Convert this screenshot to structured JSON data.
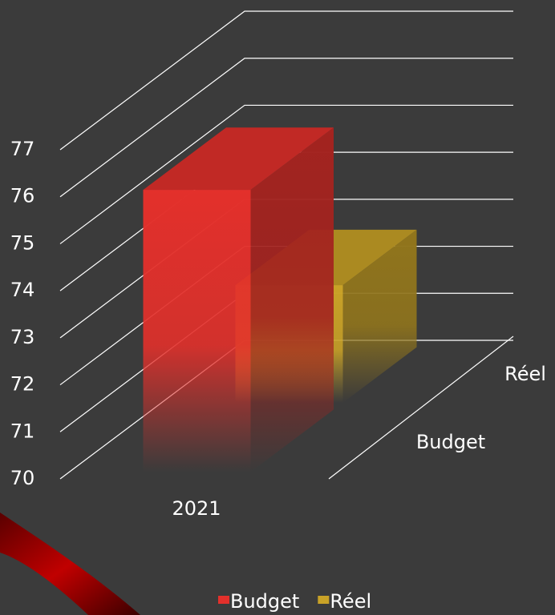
{
  "chart_data": {
    "type": "bar3d",
    "categories": [
      "2021"
    ],
    "series": [
      {
        "name": "Budget",
        "color": "#e3302b",
        "values": [
          76
        ]
      },
      {
        "name": "Réel",
        "color": "#c9a227",
        "values": [
          72.5
        ]
      }
    ],
    "ylim": [
      70,
      77
    ],
    "yticks": [
      70,
      71,
      72,
      73,
      74,
      75,
      76,
      77
    ],
    "grid": true,
    "legend": "bottom"
  }
}
